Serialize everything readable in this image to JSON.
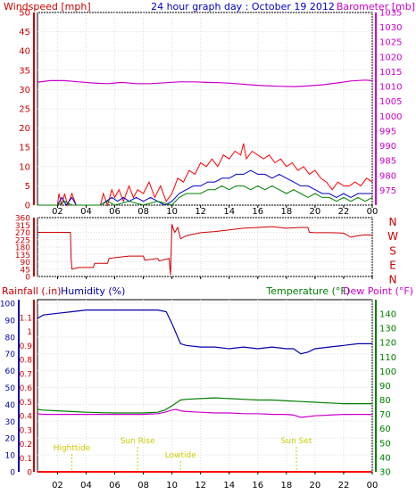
{
  "header": {
    "title": "24 hour graph day : October 19 2012",
    "wind_label": "Windspeed [mph]",
    "baro_label": "Barometer [mb]"
  },
  "time_labels": [
    "02",
    "04",
    "06",
    "08",
    "10",
    "12",
    "14",
    "16",
    "18",
    "20",
    "22",
    "00"
  ],
  "colors": {
    "wind": "#ff0000",
    "wind_avg": "#0000cc",
    "wind_low": "#008000",
    "barometer": "#cc00cc",
    "direction": "#cc0000",
    "humidity": "#0000aa",
    "temperature": "#008000",
    "dewpoint": "#cc00cc",
    "rain": "#ff0000",
    "events": "#cccc00",
    "axis_left": "#cc0000",
    "axis_right": "#cc00cc",
    "frame": "#000000"
  },
  "chart_data": [
    {
      "type": "line",
      "name": "wind-barometer",
      "x_unit": "hour",
      "xlim": [
        0.6,
        24
      ],
      "ylim": [
        0,
        50
      ],
      "y2lim": [
        970,
        1035
      ],
      "yticks": [
        0,
        5,
        10,
        15,
        20,
        25,
        30,
        35,
        40,
        45,
        50
      ],
      "y2ticks": [
        975,
        980,
        985,
        990,
        995,
        1000,
        1005,
        1010,
        1015,
        1020,
        1025,
        1030,
        1035
      ],
      "series": [
        {
          "key": "gust",
          "x": [
            0.6,
            2.0,
            2.1,
            2.3,
            2.5,
            2.7,
            3.0,
            3.3,
            5.0,
            5.2,
            5.5,
            5.8,
            6.0,
            6.3,
            6.6,
            7.0,
            7.3,
            7.6,
            8.0,
            8.4,
            8.8,
            9.2,
            9.6,
            10.0,
            10.4,
            10.8,
            11.2,
            11.6,
            12.0,
            12.4,
            12.8,
            13.2,
            13.6,
            14.0,
            14.4,
            14.8,
            15.0,
            15.2,
            15.6,
            16.0,
            16.4,
            16.8,
            17.2,
            17.6,
            18.0,
            18.4,
            18.8,
            19.2,
            19.6,
            20.0,
            20.4,
            20.8,
            21.2,
            21.6,
            22.0,
            22.4,
            22.8,
            23.2,
            23.6,
            24.0
          ],
          "y": [
            0,
            0,
            3,
            0,
            3,
            0,
            3,
            0,
            0,
            3,
            0,
            4,
            2,
            4,
            1,
            5,
            2,
            4,
            3,
            6,
            2,
            5,
            1,
            3,
            7,
            6,
            9,
            8,
            11,
            10,
            12,
            10,
            13,
            12,
            14,
            13,
            16,
            12,
            14,
            13,
            12,
            13,
            11,
            12,
            10,
            11,
            9,
            10,
            8,
            9,
            7,
            6,
            4,
            6,
            5,
            5,
            6,
            5,
            7,
            6
          ]
        },
        {
          "key": "avg",
          "x": [
            0.6,
            2.0,
            2.3,
            2.6,
            3.0,
            3.3,
            5.0,
            5.4,
            5.8,
            6.2,
            6.6,
            7.0,
            7.5,
            8.0,
            8.5,
            9.0,
            9.5,
            10.0,
            10.5,
            11.0,
            11.5,
            12.0,
            12.5,
            13.0,
            13.5,
            14.0,
            14.5,
            15.0,
            15.5,
            16.0,
            16.5,
            17.0,
            17.5,
            18.0,
            18.5,
            19.0,
            19.5,
            20.0,
            20.5,
            21.0,
            21.5,
            22.0,
            22.5,
            23.0,
            23.5,
            24.0
          ],
          "y": [
            0,
            0,
            2,
            0,
            2,
            0,
            0,
            1,
            2,
            1,
            2,
            1,
            2,
            1,
            2,
            1,
            0,
            1,
            3,
            4,
            5,
            5,
            6,
            6,
            7,
            7,
            8,
            8,
            9,
            8,
            8,
            7,
            8,
            7,
            6,
            5,
            5,
            4,
            3,
            3,
            2,
            3,
            2,
            3,
            3,
            3
          ]
        },
        {
          "key": "low",
          "x": [
            0.6,
            2.0,
            2.5,
            3.0,
            5.0,
            5.5,
            6.0,
            7.0,
            8.0,
            9.0,
            10.0,
            10.5,
            11.0,
            11.5,
            12.0,
            12.5,
            13.0,
            13.5,
            14.0,
            14.5,
            15.0,
            15.5,
            16.0,
            16.5,
            17.0,
            17.5,
            18.0,
            18.5,
            19.0,
            19.5,
            20.0,
            20.5,
            21.0,
            21.5,
            22.0,
            22.5,
            23.0,
            23.5,
            24.0
          ],
          "y": [
            0,
            0,
            1,
            0,
            0,
            1,
            0,
            1,
            0,
            1,
            0,
            2,
            3,
            3,
            3,
            4,
            4,
            5,
            4,
            5,
            5,
            4,
            5,
            4,
            5,
            4,
            3,
            4,
            3,
            2,
            3,
            2,
            2,
            1,
            2,
            1,
            2,
            1,
            2
          ]
        },
        {
          "key": "barometer",
          "axis": "y2",
          "x": [
            0.6,
            1.5,
            2.5,
            3.5,
            4.5,
            5.5,
            6.5,
            7.5,
            8.5,
            9.5,
            10.5,
            11.5,
            12.5,
            13.5,
            14.5,
            15.5,
            16.5,
            17.5,
            18.5,
            19.5,
            20.5,
            21.5,
            22.5,
            23.5,
            24.0
          ],
          "y": [
            1011.5,
            1012.0,
            1012.0,
            1011.6,
            1011.2,
            1011.0,
            1011.4,
            1011.0,
            1011.0,
            1011.3,
            1011.6,
            1011.6,
            1011.4,
            1011.3,
            1011.0,
            1010.6,
            1010.3,
            1010.1,
            1010.0,
            1010.2,
            1010.6,
            1011.2,
            1011.9,
            1012.2,
            1012.0
          ]
        }
      ]
    },
    {
      "type": "line",
      "name": "wind-direction",
      "x_unit": "hour",
      "xlim": [
        0.6,
        24
      ],
      "ylim": [
        0,
        360
      ],
      "yticks": [
        0,
        45,
        90,
        135,
        180,
        225,
        270,
        315,
        360
      ],
      "compass": [
        "N",
        "W",
        "S",
        "E",
        "N"
      ],
      "series": [
        {
          "key": "direction",
          "x": [
            0.6,
            2.9,
            2.95,
            3.0,
            3.5,
            4.5,
            4.6,
            5.5,
            5.6,
            6.0,
            7.0,
            8.0,
            8.1,
            9.0,
            9.1,
            9.8,
            9.9,
            10.0,
            10.1,
            10.2,
            10.4,
            10.6,
            11.0,
            12.0,
            13.0,
            14.0,
            15.0,
            16.0,
            17.0,
            18.0,
            19.0,
            19.5,
            19.6,
            20.0,
            21.0,
            22.0,
            22.5,
            23.0,
            23.5,
            24.0
          ],
          "y": [
            270,
            270,
            110,
            45,
            55,
            55,
            80,
            80,
            110,
            115,
            125,
            125,
            100,
            110,
            95,
            110,
            10,
            320,
            290,
            270,
            300,
            230,
            250,
            268,
            275,
            285,
            295,
            300,
            305,
            295,
            300,
            300,
            270,
            268,
            268,
            265,
            240,
            250,
            255,
            252
          ]
        }
      ]
    },
    {
      "type": "line",
      "name": "temp-humidity-rain",
      "x_unit": "hour",
      "xlim": [
        0.6,
        24
      ],
      "yticks_humidity": [
        0,
        10,
        20,
        30,
        40,
        50,
        60,
        70,
        80,
        90,
        100
      ],
      "yticks_rain": [
        0,
        0.1,
        0.2,
        0.3,
        0.4,
        0.5,
        0.6,
        0.7,
        0.8,
        0.9,
        1,
        1.1
      ],
      "yticks_temp": [
        30,
        40,
        50,
        60,
        70,
        80,
        90,
        100,
        110,
        120,
        130,
        140
      ],
      "labels": {
        "rain": "Rainfall (.in)",
        "humidity": "Humidity (%)",
        "temperature": "Temperature (°F)",
        "dewpoint": "Dew Point (°F)"
      },
      "events": [
        {
          "label": "Highttide",
          "x": 3.0,
          "level": "high"
        },
        {
          "label": "Sun Rise",
          "x": 7.6,
          "level": "mid"
        },
        {
          "label": "Lowtide",
          "x": 10.6,
          "level": "low"
        },
        {
          "label": "Sun Set",
          "x": 18.7,
          "level": "mid"
        }
      ],
      "series": [
        {
          "key": "humidity",
          "axis": "humidity",
          "x": [
            0.6,
            1.0,
            2.0,
            3.0,
            4.0,
            5.0,
            6.0,
            7.0,
            8.0,
            9.0,
            9.6,
            10.0,
            10.3,
            10.6,
            11.0,
            12.0,
            13.0,
            14.0,
            15.0,
            16.0,
            17.0,
            18.0,
            18.5,
            19.0,
            19.5,
            20.0,
            21.0,
            22.0,
            23.0,
            24.0
          ],
          "y": [
            91,
            93,
            94,
            95,
            96,
            96,
            96,
            96,
            96,
            96,
            95,
            88,
            82,
            76,
            75,
            74,
            74,
            73,
            74,
            73,
            74,
            73,
            73,
            70,
            71,
            73,
            74,
            75,
            76,
            76
          ]
        },
        {
          "key": "temperature",
          "axis": "temp",
          "x": [
            0.6,
            1.0,
            2.0,
            3.0,
            4.0,
            5.0,
            6.0,
            7.0,
            8.0,
            9.0,
            9.5,
            10.0,
            10.3,
            10.6,
            11.0,
            12.0,
            13.0,
            14.0,
            15.0,
            16.0,
            17.0,
            18.0,
            19.0,
            20.0,
            21.0,
            22.0,
            23.0,
            24.0
          ],
          "y": [
            73.5,
            73.0,
            72.5,
            72.0,
            71.5,
            71.2,
            71.0,
            71.0,
            71.0,
            71.5,
            73.0,
            76.0,
            78.0,
            80.0,
            80.5,
            81.0,
            81.5,
            81.0,
            80.5,
            80.0,
            80.0,
            79.5,
            79.0,
            78.5,
            78.0,
            77.5,
            77.5,
            77.5
          ]
        },
        {
          "key": "dewpoint",
          "axis": "temp",
          "x": [
            0.6,
            1.0,
            2.0,
            3.0,
            4.0,
            5.0,
            6.0,
            7.0,
            8.0,
            9.0,
            9.5,
            10.0,
            10.3,
            10.6,
            11.0,
            12.0,
            13.0,
            14.0,
            15.0,
            16.0,
            17.0,
            18.0,
            18.5,
            19.0,
            19.5,
            20.0,
            21.0,
            22.0,
            23.0,
            24.0
          ],
          "y": [
            70.5,
            70.0,
            70.0,
            70.0,
            70.0,
            70.0,
            70.0,
            70.0,
            70.0,
            70.5,
            71.5,
            73.0,
            73.5,
            72.5,
            72.0,
            71.5,
            71.0,
            71.0,
            70.5,
            70.5,
            70.0,
            70.0,
            69.5,
            68.0,
            68.5,
            69.0,
            69.5,
            70.0,
            70.0,
            70.0
          ]
        },
        {
          "key": "rain",
          "axis": "rain",
          "x": [
            0.6,
            24.0
          ],
          "y": [
            0,
            0
          ]
        }
      ]
    }
  ]
}
